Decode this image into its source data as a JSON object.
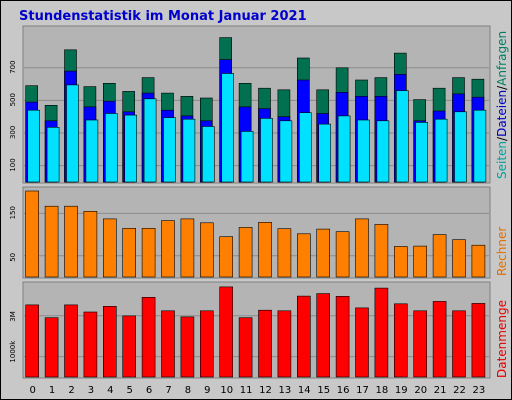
{
  "title": "Stundenstatistik im Monat Januar 2021",
  "colors": {
    "title": "#0000cc",
    "frame_bg": "#c8c8c8",
    "plot_bg": "#b4b4b4",
    "anfragen": "#007050",
    "dateien": "#0000ff",
    "seiten": "#00e0ff",
    "rechner": "#ff8000",
    "datenmenge": "#ff0000",
    "side_seiten": "#00a0a0",
    "side_sep": "#000000",
    "side_dateien": "#0000c0",
    "side_anfragen": "#008060",
    "side_rechner": "#e07000",
    "side_datenmenge": "#e00000"
  },
  "side_labels": {
    "seiten": "Seiten",
    "sep": "/",
    "dateien": "Dateien",
    "anfragen": "Anfragen",
    "rechner": "Rechner",
    "datenmenge": "Datenmenge"
  },
  "chart_data": [
    {
      "type": "bar",
      "panel": "top",
      "categories": [
        "0",
        "1",
        "2",
        "3",
        "4",
        "5",
        "6",
        "7",
        "8",
        "9",
        "10",
        "11",
        "12",
        "13",
        "14",
        "15",
        "16",
        "17",
        "18",
        "19",
        "20",
        "21",
        "22",
        "23"
      ],
      "y_ticks": [
        "100",
        "300",
        "500",
        "700"
      ],
      "ylim": [
        0,
        950
      ],
      "series": [
        {
          "name": "Anfragen",
          "values": [
            590,
            470,
            810,
            585,
            605,
            555,
            640,
            545,
            525,
            515,
            885,
            605,
            575,
            565,
            760,
            565,
            700,
            625,
            640,
            790,
            505,
            575,
            640,
            630
          ]
        },
        {
          "name": "Dateien",
          "values": [
            490,
            375,
            680,
            460,
            495,
            430,
            545,
            440,
            405,
            375,
            750,
            460,
            450,
            400,
            625,
            420,
            550,
            525,
            525,
            660,
            375,
            435,
            540,
            520
          ]
        },
        {
          "name": "Seiten",
          "values": [
            440,
            335,
            595,
            380,
            420,
            410,
            510,
            395,
            385,
            340,
            665,
            310,
            390,
            375,
            425,
            355,
            405,
            380,
            375,
            560,
            365,
            385,
            430,
            440
          ]
        }
      ]
    },
    {
      "type": "bar",
      "panel": "middle",
      "categories": [
        "0",
        "1",
        "2",
        "3",
        "4",
        "5",
        "6",
        "7",
        "8",
        "9",
        "10",
        "11",
        "12",
        "13",
        "14",
        "15",
        "16",
        "17",
        "18",
        "19",
        "20",
        "21",
        "22",
        "23"
      ],
      "y_ticks": [
        "50",
        "150"
      ],
      "ylim": [
        0,
        210
      ],
      "series": [
        {
          "name": "Rechner",
          "values": [
            203,
            167,
            167,
            155,
            137,
            115,
            115,
            133,
            137,
            128,
            95,
            117,
            129,
            114,
            102,
            113,
            107,
            137,
            124,
            72,
            73,
            100,
            88,
            75
          ]
        }
      ]
    },
    {
      "type": "bar",
      "panel": "bottom",
      "categories": [
        "0",
        "1",
        "2",
        "3",
        "4",
        "5",
        "6",
        "7",
        "8",
        "9",
        "10",
        "11",
        "12",
        "13",
        "14",
        "15",
        "16",
        "17",
        "18",
        "19",
        "20",
        "21",
        "22",
        "23"
      ],
      "y_ticks": [
        "1000k",
        "3M"
      ],
      "ylim": [
        0,
        4600
      ],
      "series": [
        {
          "name": "Datenmenge",
          "values": [
            3530,
            2900,
            3530,
            3180,
            3460,
            2990,
            3900,
            3240,
            2940,
            3240,
            4410,
            2900,
            3270,
            3240,
            3960,
            4080,
            3950,
            3380,
            4350,
            3580,
            3240,
            3700,
            3240,
            3600
          ]
        }
      ]
    }
  ]
}
